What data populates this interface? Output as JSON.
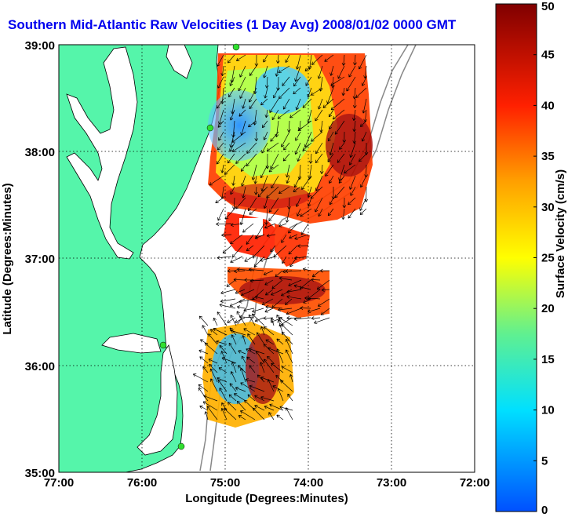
{
  "title": "Southern Mid-Atlantic Raw Velocities (1 Day Avg) 2008/01/02 0000 GMT",
  "map": {
    "xlabel": "Longitude (Degrees:Minutes)",
    "ylabel": "Latitude (Degrees:Minutes)",
    "x_ticks": [
      "77:00",
      "76:00",
      "75:00",
      "74:00",
      "73:00",
      "72:00"
    ],
    "y_ticks": [
      "39:00",
      "38:00",
      "37:00",
      "36:00",
      "35:00"
    ],
    "land_color": "#55f5aa",
    "grid": true
  },
  "colorbar": {
    "label": "Surface Velocity (cm/s)",
    "ticks": [
      "50",
      "45",
      "40",
      "35",
      "30",
      "25",
      "20",
      "15",
      "10",
      "5",
      "0"
    ],
    "min": 0,
    "max": 50
  },
  "stations": [
    "station",
    "station",
    "station",
    "station"
  ]
}
